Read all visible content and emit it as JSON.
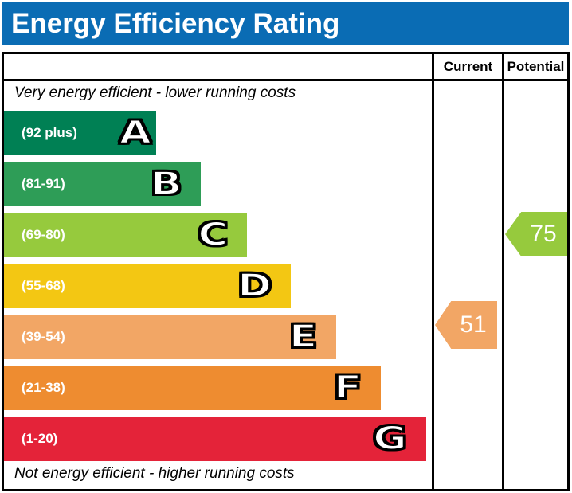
{
  "title": "Energy Efficiency Rating",
  "colors": {
    "title_bar": "#0a6cb4",
    "border": "#000000"
  },
  "columns": {
    "current": "Current",
    "potential": "Potential"
  },
  "notes": {
    "top": "Very energy efficient - lower running costs",
    "bottom": "Not energy efficient - higher running costs"
  },
  "bands": [
    {
      "letter": "A",
      "range": "(92 plus)",
      "color": "#008054"
    },
    {
      "letter": "B",
      "range": "(81-91)",
      "color": "#2e9d57"
    },
    {
      "letter": "C",
      "range": "(69-80)",
      "color": "#96ca3d"
    },
    {
      "letter": "D",
      "range": "(55-68)",
      "color": "#f3c713"
    },
    {
      "letter": "E",
      "range": "(39-54)",
      "color": "#f2a665"
    },
    {
      "letter": "F",
      "range": "(21-38)",
      "color": "#ee8c30"
    },
    {
      "letter": "G",
      "range": "(1-20)",
      "color": "#e42339"
    }
  ],
  "ratings": {
    "current": {
      "value": "51",
      "band": "E",
      "color": "#f2a665"
    },
    "potential": {
      "value": "75",
      "band": "C",
      "color": "#96ca3d"
    }
  },
  "chart_data": {
    "type": "bar",
    "title": "Energy Efficiency Rating",
    "categories": [
      "A",
      "B",
      "C",
      "D",
      "E",
      "F",
      "G"
    ],
    "category_ranges": [
      "92 plus",
      "81-91",
      "69-80",
      "55-68",
      "39-54",
      "21-38",
      "1-20"
    ],
    "band_bounds": [
      [
        92,
        100
      ],
      [
        81,
        91
      ],
      [
        69,
        80
      ],
      [
        55,
        68
      ],
      [
        39,
        54
      ],
      [
        21,
        38
      ],
      [
        1,
        20
      ]
    ],
    "bar_relative_widths": [
      191,
      247,
      305,
      360,
      417,
      473,
      530
    ],
    "series": [
      {
        "name": "Current",
        "value": 51,
        "band": "E"
      },
      {
        "name": "Potential",
        "value": 75,
        "band": "C"
      }
    ],
    "top_annotation": "Very energy efficient - lower running costs",
    "bottom_annotation": "Not energy efficient - higher running costs",
    "legend_position": "top-right-columns",
    "grid": false
  }
}
